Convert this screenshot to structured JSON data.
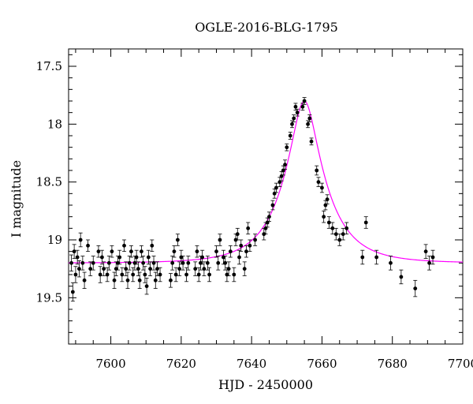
{
  "chart_data": {
    "type": "scatter",
    "title": "OGLE-2016-BLG-1795",
    "xlabel": "HJD - 2450000",
    "ylabel": "I magnitude",
    "xlim": [
      7588,
      7700
    ],
    "ylim": [
      19.9,
      17.35
    ],
    "y_inverted": true,
    "grid": false,
    "xticks": [
      7600,
      7620,
      7640,
      7660,
      7680,
      7700
    ],
    "xtick_labels": [
      "7600",
      "7620",
      "7640",
      "7660",
      "7680",
      "7700"
    ],
    "yticks": [
      17.5,
      18,
      18.5,
      19,
      19.5
    ],
    "ytick_labels": [
      "17.5",
      "18",
      "18.5",
      "19",
      "19.5"
    ],
    "colors": {
      "points": "#000000",
      "model": "#ff00ff"
    },
    "series": [
      {
        "kind": "points-with-errorbars",
        "color": "#000000",
        "x": [
          7588.8,
          7589.2,
          7589.6,
          7590.0,
          7590.5,
          7591.0,
          7591.4,
          7592.0,
          7592.5,
          7593.5,
          7594.2,
          7595.0,
          7596.5,
          7597.0,
          7597.5,
          7598.0,
          7599.0,
          7599.5,
          7600.3,
          7601.0,
          7601.5,
          7602.0,
          7602.5,
          7603.2,
          7603.8,
          7604.3,
          7604.8,
          7605.3,
          7605.8,
          7606.3,
          7606.8,
          7607.3,
          7607.8,
          7608.2,
          7608.7,
          7609.2,
          7609.7,
          7610.2,
          7610.7,
          7611.2,
          7611.7,
          7612.2,
          7612.7,
          7613.2,
          7614.0,
          7617.0,
          7617.5,
          7618.0,
          7618.5,
          7619.0,
          7619.5,
          7620.0,
          7620.5,
          7621.5,
          7622.0,
          7624.0,
          7624.5,
          7625.0,
          7625.5,
          7626.0,
          7626.5,
          7627.5,
          7628.0,
          7630.0,
          7630.5,
          7631.0,
          7632.0,
          7632.5,
          7633.0,
          7633.5,
          7634.0,
          7635.0,
          7635.5,
          7636.0,
          7636.5,
          7637.0,
          7638.0,
          7638.5,
          7639.0,
          7639.5,
          7641.0,
          7643.5,
          7644.0,
          7644.5,
          7645.0,
          7646.0,
          7646.5,
          7647.0,
          7648.0,
          7648.5,
          7649.0,
          7649.5,
          7650.0,
          7651.0,
          7651.5,
          7652.0,
          7652.5,
          7653.0,
          7654.5,
          7655.0,
          7656.0,
          7656.5,
          7657.0,
          7658.5,
          7659.0,
          7660.0,
          7660.5,
          7661.0,
          7661.5,
          7662.0,
          7663.0,
          7664.0,
          7665.0,
          7666.0,
          7667.0,
          7671.5,
          7672.5,
          7675.5,
          7679.5,
          7682.5,
          7686.5,
          7689.5,
          7690.5,
          7691.5
        ],
        "y": [
          19.2,
          19.45,
          19.1,
          19.3,
          19.15,
          19.25,
          19.0,
          19.2,
          19.35,
          19.05,
          19.25,
          19.2,
          19.1,
          19.3,
          19.15,
          19.25,
          19.3,
          19.2,
          19.1,
          19.35,
          19.25,
          19.2,
          19.15,
          19.3,
          19.05,
          19.25,
          19.35,
          19.2,
          19.1,
          19.3,
          19.2,
          19.15,
          19.25,
          19.35,
          19.1,
          19.2,
          19.3,
          19.4,
          19.15,
          19.25,
          19.05,
          19.2,
          19.35,
          19.25,
          19.3,
          19.35,
          19.2,
          19.1,
          19.3,
          19.0,
          19.25,
          19.15,
          19.2,
          19.3,
          19.2,
          19.25,
          19.1,
          19.3,
          19.2,
          19.15,
          19.25,
          19.2,
          19.3,
          19.1,
          19.2,
          19.0,
          19.15,
          19.2,
          19.3,
          19.25,
          19.1,
          19.3,
          19.0,
          18.95,
          19.15,
          19.05,
          19.25,
          19.1,
          18.9,
          19.05,
          19.0,
          18.95,
          18.9,
          18.85,
          18.8,
          18.7,
          18.6,
          18.55,
          18.5,
          18.45,
          18.4,
          18.35,
          18.2,
          18.1,
          18.0,
          17.95,
          17.85,
          17.9,
          17.85,
          17.8,
          18.0,
          17.95,
          18.15,
          18.4,
          18.5,
          18.55,
          18.8,
          18.7,
          18.65,
          18.85,
          18.9,
          18.95,
          19.0,
          18.95,
          18.9,
          19.15,
          18.85,
          19.15,
          19.2,
          19.32,
          19.42,
          19.1,
          19.2,
          19.15
        ],
        "err": [
          0.07,
          0.08,
          0.06,
          0.07,
          0.06,
          0.07,
          0.06,
          0.06,
          0.07,
          0.05,
          0.06,
          0.06,
          0.05,
          0.07,
          0.06,
          0.06,
          0.06,
          0.06,
          0.05,
          0.07,
          0.06,
          0.06,
          0.06,
          0.06,
          0.05,
          0.06,
          0.07,
          0.06,
          0.05,
          0.06,
          0.06,
          0.06,
          0.06,
          0.07,
          0.05,
          0.06,
          0.07,
          0.07,
          0.06,
          0.06,
          0.05,
          0.06,
          0.07,
          0.06,
          0.06,
          0.06,
          0.06,
          0.05,
          0.06,
          0.05,
          0.06,
          0.06,
          0.06,
          0.06,
          0.06,
          0.06,
          0.05,
          0.06,
          0.06,
          0.06,
          0.06,
          0.06,
          0.06,
          0.05,
          0.06,
          0.05,
          0.06,
          0.06,
          0.06,
          0.06,
          0.05,
          0.06,
          0.05,
          0.05,
          0.06,
          0.05,
          0.06,
          0.05,
          0.05,
          0.05,
          0.05,
          0.05,
          0.05,
          0.04,
          0.04,
          0.04,
          0.04,
          0.04,
          0.04,
          0.04,
          0.04,
          0.04,
          0.03,
          0.03,
          0.03,
          0.03,
          0.03,
          0.03,
          0.03,
          0.03,
          0.03,
          0.03,
          0.03,
          0.04,
          0.04,
          0.04,
          0.05,
          0.04,
          0.04,
          0.05,
          0.05,
          0.05,
          0.05,
          0.05,
          0.05,
          0.06,
          0.05,
          0.06,
          0.06,
          0.06,
          0.07,
          0.06,
          0.06,
          0.06
        ]
      },
      {
        "kind": "model-curve",
        "color": "#ff00ff",
        "baseline": 19.2,
        "peak_x": 7655.0,
        "peak_mag": 17.8,
        "tE": 12
      }
    ]
  }
}
